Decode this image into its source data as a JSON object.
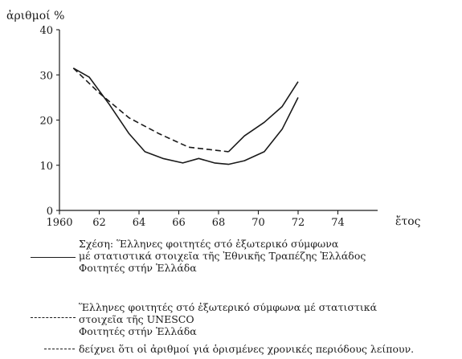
{
  "chart_data": {
    "type": "line",
    "ylabel": "ἀριθμοί %",
    "xlabel": "ἔτος",
    "xlim": [
      1960,
      76
    ],
    "ylim": [
      0,
      40
    ],
    "x_ticks": [
      1960,
      62,
      64,
      66,
      68,
      70,
      72,
      74
    ],
    "x_tick_labels": [
      "1960",
      "62",
      "64",
      "66",
      "68",
      "70",
      "72",
      "74"
    ],
    "y_ticks": [
      0,
      10,
      20,
      30,
      40
    ],
    "y_tick_labels": [
      "0",
      "10",
      "20",
      "30",
      "40"
    ],
    "series": [
      {
        "style": "solid",
        "x": [
          60.7,
          61.5,
          62.5,
          63.5,
          64.3,
          65.2,
          66.2,
          67.0,
          67.8,
          68.5,
          69.3,
          70.3,
          71.2,
          72.0
        ],
        "y": [
          31.5,
          29.5,
          23.5,
          17.0,
          13.0,
          11.5,
          10.5,
          11.5,
          10.5,
          10.2,
          11.0,
          13.0,
          18.0,
          25.0
        ]
      },
      {
        "style": "solid",
        "x": [
          68.5,
          69.3,
          70.3,
          71.2,
          72.0
        ],
        "y": [
          13.0,
          16.5,
          19.5,
          23.0,
          28.5
        ]
      },
      {
        "style": "dashed",
        "x": [
          60.7,
          62.0,
          63.5,
          65.0,
          66.5,
          67.5,
          68.5
        ],
        "y": [
          31.5,
          26.0,
          20.5,
          17.0,
          14.0,
          13.5,
          13.0
        ]
      }
    ]
  },
  "legend": {
    "solid_text": "Σχέση: Ἕλληνες φοιτητές στό ἐξωτερικό σύμφωνα\nμέ στατιστικά στοιχεῖα τῆς Ἐθνικῆς Τραπέζης Ἑλλάδος\nΦοιτητές στήν Ἑλλάδα",
    "dashed_text": "Ἕλληνες φοιτητές στό ἐξωτερικό σύμφωνα μέ στατιστικά\nστοιχεῖα τῆς UNESCO\nΦοιτητές στήν Ἑλλάδα",
    "missing_text": "δείχνει ὅτι οἱ ἀριθμοί γιά ὁρισμένες χρονικές περιόδους λείπουν."
  }
}
